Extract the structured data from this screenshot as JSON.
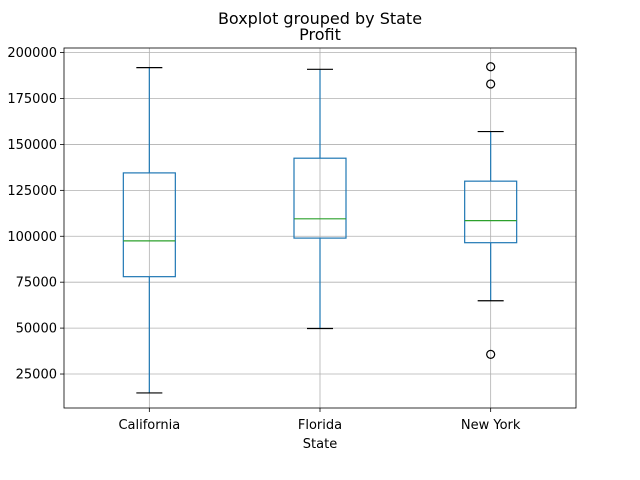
{
  "chart_data": {
    "type": "boxplot",
    "suptitle": "Boxplot grouped by State",
    "title": "Profit",
    "xlabel": "State",
    "ylabel": "",
    "ylim": [
      6500,
      202500
    ],
    "yticks": [
      25000,
      50000,
      75000,
      100000,
      125000,
      150000,
      175000,
      200000
    ],
    "grid": true,
    "categories": [
      "California",
      "Florida",
      "New York"
    ],
    "boxes": [
      {
        "category": "California",
        "whisker_low": 14700,
        "q1": 78000,
        "median": 97500,
        "q3": 134500,
        "whisker_high": 191800,
        "outliers": []
      },
      {
        "category": "Florida",
        "whisker_low": 49800,
        "q1": 99000,
        "median": 109500,
        "q3": 142500,
        "whisker_high": 190900,
        "outliers": []
      },
      {
        "category": "New York",
        "whisker_low": 64900,
        "q1": 96500,
        "median": 108500,
        "q3": 130000,
        "whisker_high": 157000,
        "outliers": [
          192300,
          182900,
          35700
        ]
      }
    ],
    "colors": {
      "box": "#1f77b4",
      "median": "#2ca02c",
      "cap": "#000000",
      "grid": "#b0b0b0"
    }
  }
}
